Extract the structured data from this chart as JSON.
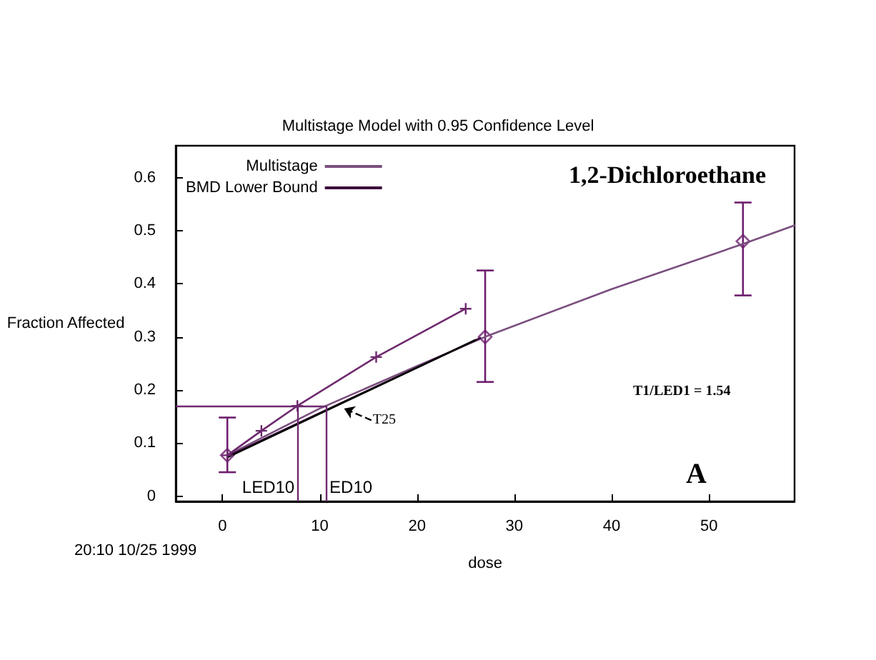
{
  "chart_data": {
    "type": "line",
    "title": "Multistage Model with 0.95 Confidence Level",
    "xlabel": "dose",
    "ylabel": "Fraction Affected",
    "xlim": [
      -4.8,
      58.8
    ],
    "xticks": [
      0,
      10,
      20,
      30,
      40,
      50
    ],
    "ylim": [
      -0.01,
      0.66
    ],
    "yticks": [
      0,
      0.1,
      0.2,
      0.3,
      0.4,
      0.5,
      0.6
    ],
    "grid": false,
    "legend": "top left",
    "series": [
      {
        "name": "Multistage",
        "color": "#7b4f7f",
        "marker": "none",
        "x": [
          0.5,
          10,
          20,
          27,
          40,
          53.5,
          58.8
        ],
        "values": [
          0.077,
          0.165,
          0.245,
          0.3,
          0.39,
          0.475,
          0.51
        ]
      },
      {
        "name": "BMD Lower Bound",
        "color": "#3c0a3c",
        "marker": "none",
        "x": [
          0.5,
          26.5
        ],
        "values": [
          0.075,
          0.298
        ]
      },
      {
        "color": "#000000",
        "marker": "none",
        "x": [
          0.5,
          26
        ],
        "values": [
          0.073,
          0.294
        ]
      },
      {
        "color": "#6e2a6e",
        "marker": "cross",
        "x": [
          0.5,
          4,
          7.7,
          15.8,
          25
        ],
        "values": [
          0.077,
          0.123,
          0.17,
          0.262,
          0.353
        ]
      },
      {
        "type": "scatter",
        "color": "#6e1e6e",
        "marker": "diamond",
        "x": [
          0.5,
          27,
          53.5
        ],
        "values": [
          0.077,
          0.3,
          0.48
        ],
        "errors": [
          [
            0.045,
            0.148
          ],
          [
            0.215,
            0.425
          ],
          [
            0.378,
            0.553
          ]
        ]
      }
    ],
    "ref_lines": [
      {
        "axis": "y",
        "value": 0.17,
        "color": "#6e2a6e"
      },
      {
        "axis": "x",
        "value": 7.7,
        "label": "LED10",
        "color": "#6e2a6e"
      },
      {
        "axis": "x",
        "value": 10.7,
        "label": "ED10",
        "color": "#6e2a6e"
      }
    ],
    "annotations": [
      "1,2-Dichloroethane",
      "T1/LED1 = 1.54",
      "A",
      "20:10 10/25 1999",
      {
        "text": "T25",
        "x": 12.5,
        "y": 0.165
      }
    ]
  }
}
